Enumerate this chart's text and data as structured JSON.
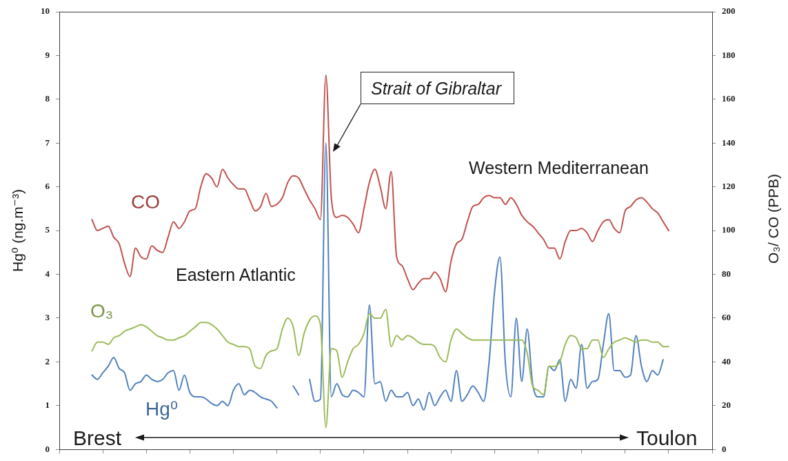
{
  "chart_data": {
    "type": "line",
    "ylabel": "Hg⁰ (ng.m⁻³)",
    "y2label": "O₃/ CO (PPB)",
    "categories": [
      null,
      null,
      null,
      null,
      null,
      null,
      null,
      null,
      null,
      null,
      null,
      null,
      null,
      null,
      null,
      null,
      null,
      null,
      null,
      null,
      null,
      null,
      null,
      null,
      null,
      null,
      null,
      null,
      null,
      null,
      null,
      null,
      null,
      null,
      null,
      null,
      null,
      null,
      null,
      null,
      null,
      null,
      null,
      null,
      null,
      null,
      null,
      null,
      null,
      null,
      null,
      null,
      null,
      null,
      null,
      null,
      null,
      null,
      null,
      null,
      null,
      null,
      null,
      null,
      null,
      null,
      null,
      null,
      null,
      null,
      null,
      null,
      null,
      null,
      null,
      null,
      null,
      null,
      null,
      null,
      null,
      null,
      null,
      null,
      null,
      null,
      null,
      null,
      null,
      null,
      null,
      null,
      null,
      null,
      null,
      null,
      null,
      null,
      null,
      null,
      null,
      null,
      null,
      null,
      null,
      null,
      null,
      null,
      null,
      null,
      null,
      null,
      null,
      null,
      null,
      null,
      null,
      null,
      null,
      null,
      null
    ],
    "series": [
      {
        "name": "CO",
        "color": "#c0504d",
        "axis": "y2",
        "values": [
          null,
          null,
          null,
          null,
          null,
          null,
          105,
          100,
          101,
          102,
          97,
          94,
          85,
          79,
          92,
          88,
          87,
          93,
          91,
          90,
          97,
          104,
          101,
          104,
          109,
          110,
          120,
          126,
          124,
          120,
          128,
          124,
          121,
          119,
          119,
          114,
          109,
          111,
          117,
          111,
          112,
          115,
          122,
          125,
          124,
          119,
          114,
          110,
          105,
          171,
          115,
          106,
          107,
          106,
          103,
          99,
          110,
          122,
          128,
          120,
          110,
          127,
          88,
          84,
          78,
          73,
          76,
          78,
          78,
          81,
          78,
          72,
          86,
          94,
          96,
          104,
          111,
          112,
          115,
          116,
          115,
          115,
          112,
          115,
          112,
          107,
          104,
          102,
          99,
          96,
          92,
          92,
          87,
          95,
          100,
          100,
          101,
          99,
          95,
          100,
          104,
          105,
          101,
          99,
          109,
          111,
          114,
          115,
          113,
          110,
          108,
          104,
          100,
          null,
          null,
          null,
          null,
          null,
          null,
          null,
          null
        ]
      },
      {
        "name": "O₃",
        "color": "#9bbb59",
        "axis": "y2",
        "values": [
          null,
          null,
          null,
          null,
          null,
          null,
          45,
          49,
          49,
          48,
          51,
          52,
          54,
          55,
          56,
          57,
          56,
          54,
          52,
          51,
          50,
          50,
          51,
          52,
          54,
          56,
          58,
          58,
          57,
          55,
          52,
          49,
          48,
          47,
          47,
          46,
          38,
          37,
          43,
          45,
          46,
          55,
          60,
          56,
          43,
          53,
          59,
          61,
          57,
          10,
          46,
          45,
          33,
          40,
          46,
          48,
          53,
          62,
          60,
          60,
          64,
          47,
          52,
          50,
          52,
          51,
          49,
          48,
          48,
          47,
          42,
          40,
          50,
          55,
          53,
          51,
          50,
          50,
          50,
          50,
          50,
          50,
          50,
          50,
          50,
          50,
          44,
          29,
          27,
          25,
          38,
          38,
          40,
          48,
          52,
          51,
          46,
          46,
          50,
          50,
          42,
          46,
          49,
          50,
          51,
          50,
          49,
          50,
          50,
          49,
          49,
          47,
          47,
          null,
          null,
          null,
          null,
          null,
          null,
          null,
          null
        ]
      },
      {
        "name": "Hg⁰",
        "color": "#4f81bd",
        "values": [
          null,
          null,
          null,
          null,
          null,
          null,
          1.7,
          1.6,
          1.75,
          1.9,
          2.1,
          1.85,
          1.75,
          1.35,
          1.5,
          1.55,
          1.7,
          1.6,
          1.55,
          1.6,
          1.75,
          1.8,
          1.35,
          1.7,
          1.3,
          1.2,
          1.2,
          1.15,
          1.05,
          1.0,
          1.1,
          1.0,
          1.35,
          1.5,
          1.25,
          1.35,
          1.3,
          1.2,
          1.15,
          1.1,
          0.95,
          null,
          null,
          1.45,
          1.25,
          null,
          1.6,
          1.1,
          1.15,
          7.0,
          1.2,
          1.5,
          1.25,
          1.2,
          1.35,
          1.3,
          1.2,
          3.3,
          1.5,
          1.55,
          1.1,
          1.35,
          1.2,
          1.2,
          1.3,
          1.0,
          1.15,
          0.9,
          1.3,
          1.0,
          1.2,
          1.35,
          1.1,
          1.8,
          1.1,
          1.25,
          1.45,
          1.3,
          1.1,
          2.0,
          3.6,
          4.4,
          1.95,
          1.2,
          3.0,
          1.55,
          2.75,
          1.5,
          1.2,
          1.2,
          1.9,
          1.8,
          2.05,
          1.1,
          1.6,
          1.4,
          2.4,
          1.4,
          1.55,
          1.6,
          2.4,
          3.1,
          1.8,
          1.8,
          1.65,
          1.7,
          2.6,
          1.9,
          1.55,
          1.8,
          1.7,
          2.05,
          null,
          null,
          null,
          null,
          null,
          null,
          null,
          null,
          null
        ]
      }
    ],
    "ylim": [
      0,
      10
    ],
    "yticks": [
      0,
      1,
      2,
      3,
      4,
      5,
      6,
      7,
      8,
      9,
      10
    ],
    "y2lim": [
      0,
      200
    ],
    "y2ticks": [
      0,
      20,
      40,
      60,
      80,
      100,
      120,
      140,
      160,
      180,
      200
    ],
    "annotations": [
      "Strait of Gibraltar",
      "Western Mediterranean",
      "Eastern Atlantic",
      "Brest",
      "Toulon"
    ],
    "marker": "none",
    "tick_labels": "y"
  }
}
